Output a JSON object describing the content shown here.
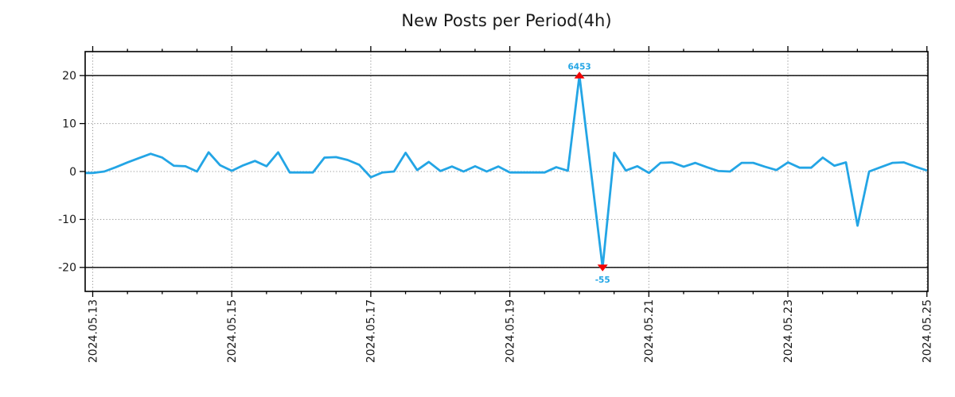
{
  "chart_data": {
    "type": "line",
    "title": "New Posts per Period(4h)",
    "xlabel": "",
    "ylabel": "",
    "x_tick_labels": [
      "2024.05.13",
      "2024.05.15",
      "2024.05.17",
      "2024.05.19",
      "2024.05.21",
      "2024.05.23",
      "2024.05.25"
    ],
    "x_tick_interval_days": 2,
    "x_minor_tick_days": 0.5,
    "x_range_days": [
      0,
      12
    ],
    "x_start_offset_days": -0.1667,
    "x_step_days": 0.1667,
    "x_step_hours": 4,
    "ylim": [
      -25,
      25
    ],
    "y_ticks": [
      -20,
      -10,
      0,
      10,
      20
    ],
    "threshold_lines": [
      20,
      -20
    ],
    "display_clip": 20,
    "grid": true,
    "legend": "none",
    "line_color": "#23a5e5",
    "marker_color": "#f40000",
    "annotation_text_color": "#23a5e5",
    "grid_color": "#999999",
    "axis_color": "#000000",
    "text_color": "#1a1a1a",
    "background_color": "#ffffff",
    "series": [
      {
        "name": "New Posts",
        "values": [
          -0.3,
          -0.3,
          0.0,
          0.9,
          1.9,
          2.8,
          3.7,
          2.9,
          1.2,
          1.1,
          0.0,
          4.0,
          1.3,
          0.15,
          1.3,
          2.2,
          1.1,
          4.0,
          -0.2,
          -0.2,
          -0.2,
          2.9,
          3.0,
          2.4,
          1.4,
          -1.2,
          -0.2,
          0.0,
          3.9,
          0.3,
          2.0,
          0.1,
          1.05,
          0.0,
          1.1,
          0.0,
          1.05,
          -0.2,
          -0.2,
          -0.2,
          -0.2,
          0.9,
          0.15,
          6453,
          0.0,
          -55,
          3.9,
          0.2,
          1.1,
          -0.3,
          1.8,
          1.9,
          1.0,
          1.8,
          0.9,
          0.1,
          0.0,
          1.8,
          1.8,
          1.0,
          0.3,
          1.9,
          0.8,
          0.8,
          2.9,
          1.2,
          1.9,
          -11.3,
          0.0,
          0.9,
          1.8,
          1.9,
          1.0,
          0.2
        ]
      }
    ],
    "annotations": [
      {
        "index": 43,
        "label": "6453",
        "value": 6453,
        "marker": "caret-up",
        "position": "above"
      },
      {
        "index": 45,
        "label": "-55",
        "value": -55,
        "marker": "caret-down",
        "position": "below"
      }
    ]
  }
}
